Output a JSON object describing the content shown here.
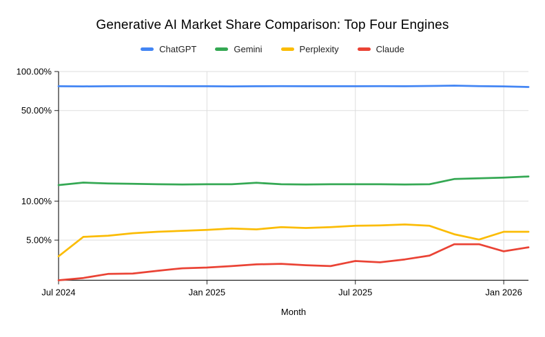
{
  "title": "Generative AI Market Share Comparison: Top Four Engines",
  "legend": [
    {
      "label": "ChatGPT",
      "color": "#4285F4"
    },
    {
      "label": "Gemini",
      "color": "#34A853"
    },
    {
      "label": "Perplexity",
      "color": "#FBBC04"
    },
    {
      "label": "Claude",
      "color": "#EA4335"
    }
  ],
  "colors": {
    "chatgpt_blue": "#4285F4",
    "gemini_green": "#34A853",
    "perplexity_yellow": "#FBBC04",
    "claude_red": "#EA4335",
    "gridline": "#dddddd",
    "axis": "#222222",
    "label_text": "#000000"
  },
  "chart_data": {
    "type": "line",
    "title": "Generative AI Market Share Comparison: Top Four Engines",
    "xlabel": "Month",
    "ylabel": "",
    "yscale": "log",
    "ylim": [
      2.45,
      100
    ],
    "grid": true,
    "legend_position": "top",
    "x": [
      "Jul 2024",
      "Aug 2024",
      "Sep 2024",
      "Oct 2024",
      "Nov 2024",
      "Dec 2024",
      "Jan 2025",
      "Feb 2025",
      "Mar 2025",
      "Apr 2025",
      "May 2025",
      "Jun 2025",
      "Jul 2025",
      "Aug 2025",
      "Sep 2025",
      "Oct 2025",
      "Nov 2025",
      "Dec 2025",
      "Jan 2026",
      "Feb 2026"
    ],
    "xtick_indices": [
      0,
      6,
      12,
      18
    ],
    "xtick_labels": [
      "Jul 2024",
      "Jan 2025",
      "Jul 2025",
      "Jan 2026"
    ],
    "ytick_values": [
      100,
      50,
      10,
      5
    ],
    "ytick_labels": [
      "100.00%",
      "50.00%",
      "10.00%",
      "5.00%"
    ],
    "series": [
      {
        "name": "ChatGPT",
        "color": "#4285F4",
        "values": [
          77.0,
          76.8,
          77.0,
          77.2,
          77.2,
          77.0,
          77.0,
          76.8,
          77.0,
          77.2,
          77.0,
          77.0,
          77.0,
          77.2,
          77.0,
          77.4,
          77.8,
          77.2,
          76.8,
          76.0
        ]
      },
      {
        "name": "Gemini",
        "color": "#34A853",
        "values": [
          13.3,
          13.9,
          13.7,
          13.6,
          13.5,
          13.45,
          13.5,
          13.5,
          13.85,
          13.5,
          13.45,
          13.5,
          13.5,
          13.5,
          13.45,
          13.5,
          14.8,
          15.0,
          15.2,
          15.5
        ]
      },
      {
        "name": "Perplexity",
        "color": "#FBBC04",
        "values": [
          3.75,
          5.3,
          5.4,
          5.65,
          5.8,
          5.9,
          6.0,
          6.15,
          6.05,
          6.3,
          6.2,
          6.3,
          6.45,
          6.5,
          6.6,
          6.45,
          5.55,
          5.05,
          5.8,
          5.8
        ]
      },
      {
        "name": "Claude",
        "color": "#EA4335",
        "values": [
          2.45,
          2.55,
          2.74,
          2.76,
          2.9,
          3.03,
          3.07,
          3.15,
          3.25,
          3.28,
          3.2,
          3.15,
          3.45,
          3.37,
          3.55,
          3.8,
          4.65,
          4.65,
          4.1,
          4.4
        ]
      }
    ]
  }
}
